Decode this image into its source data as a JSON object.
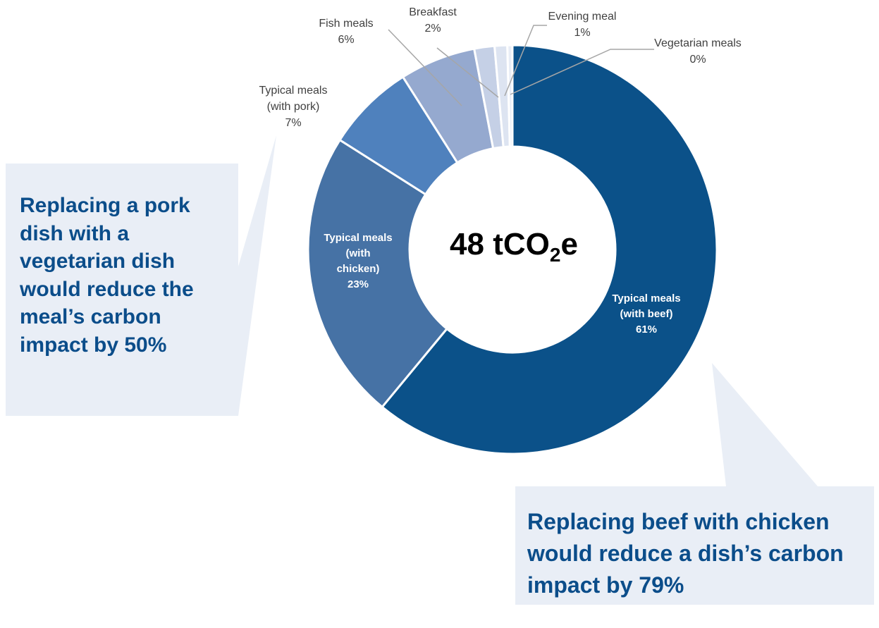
{
  "chart_data": {
    "type": "pie",
    "variant": "donut",
    "center_label": {
      "value": "48 t",
      "formula_main": "CO",
      "formula_sub": "2",
      "suffix": "e"
    },
    "slices": [
      {
        "label": [
          "Typical meals",
          "(with beef)"
        ],
        "percent_label": "61%",
        "value": 61,
        "color": "#0b5189",
        "label_style": "inside"
      },
      {
        "label": [
          "Typical meals",
          "(with",
          "chicken)"
        ],
        "percent_label": "23%",
        "value": 23,
        "color": "#4672a5",
        "label_style": "inside"
      },
      {
        "label": [
          "Typical meals",
          "(with pork)"
        ],
        "percent_label": "7%",
        "value": 7,
        "color": "#4f81bd",
        "label_style": "outside"
      },
      {
        "label": [
          "Fish meals"
        ],
        "percent_label": "6%",
        "value": 6,
        "color": "#95a9cf",
        "label_style": "outside"
      },
      {
        "label": [
          "Breakfast"
        ],
        "percent_label": "2%",
        "value": 1.6,
        "color": "#c5d0e6",
        "label_style": "outside"
      },
      {
        "label": [
          "Evening meal"
        ],
        "percent_label": "1%",
        "value": 1,
        "color": "#dde4f1",
        "label_style": "outside"
      },
      {
        "label": [
          "Vegetarian meals"
        ],
        "percent_label": "0%",
        "value": 0.4,
        "color": "#e8edf6",
        "label_style": "outside"
      }
    ]
  },
  "callouts": {
    "pork": [
      "Replacing a pork",
      "dish with a",
      "vegetarian dish",
      "would reduce the",
      "meal’s carbon",
      "impact by 50%"
    ],
    "beef": [
      "Replacing beef with chicken",
      "would reduce a dish’s carbon",
      "impact by 79%"
    ]
  },
  "colors": {
    "callout_bg": "#e9eef6",
    "callout_text": "#0b4d8a",
    "leader_line": "#a6a6a6"
  }
}
